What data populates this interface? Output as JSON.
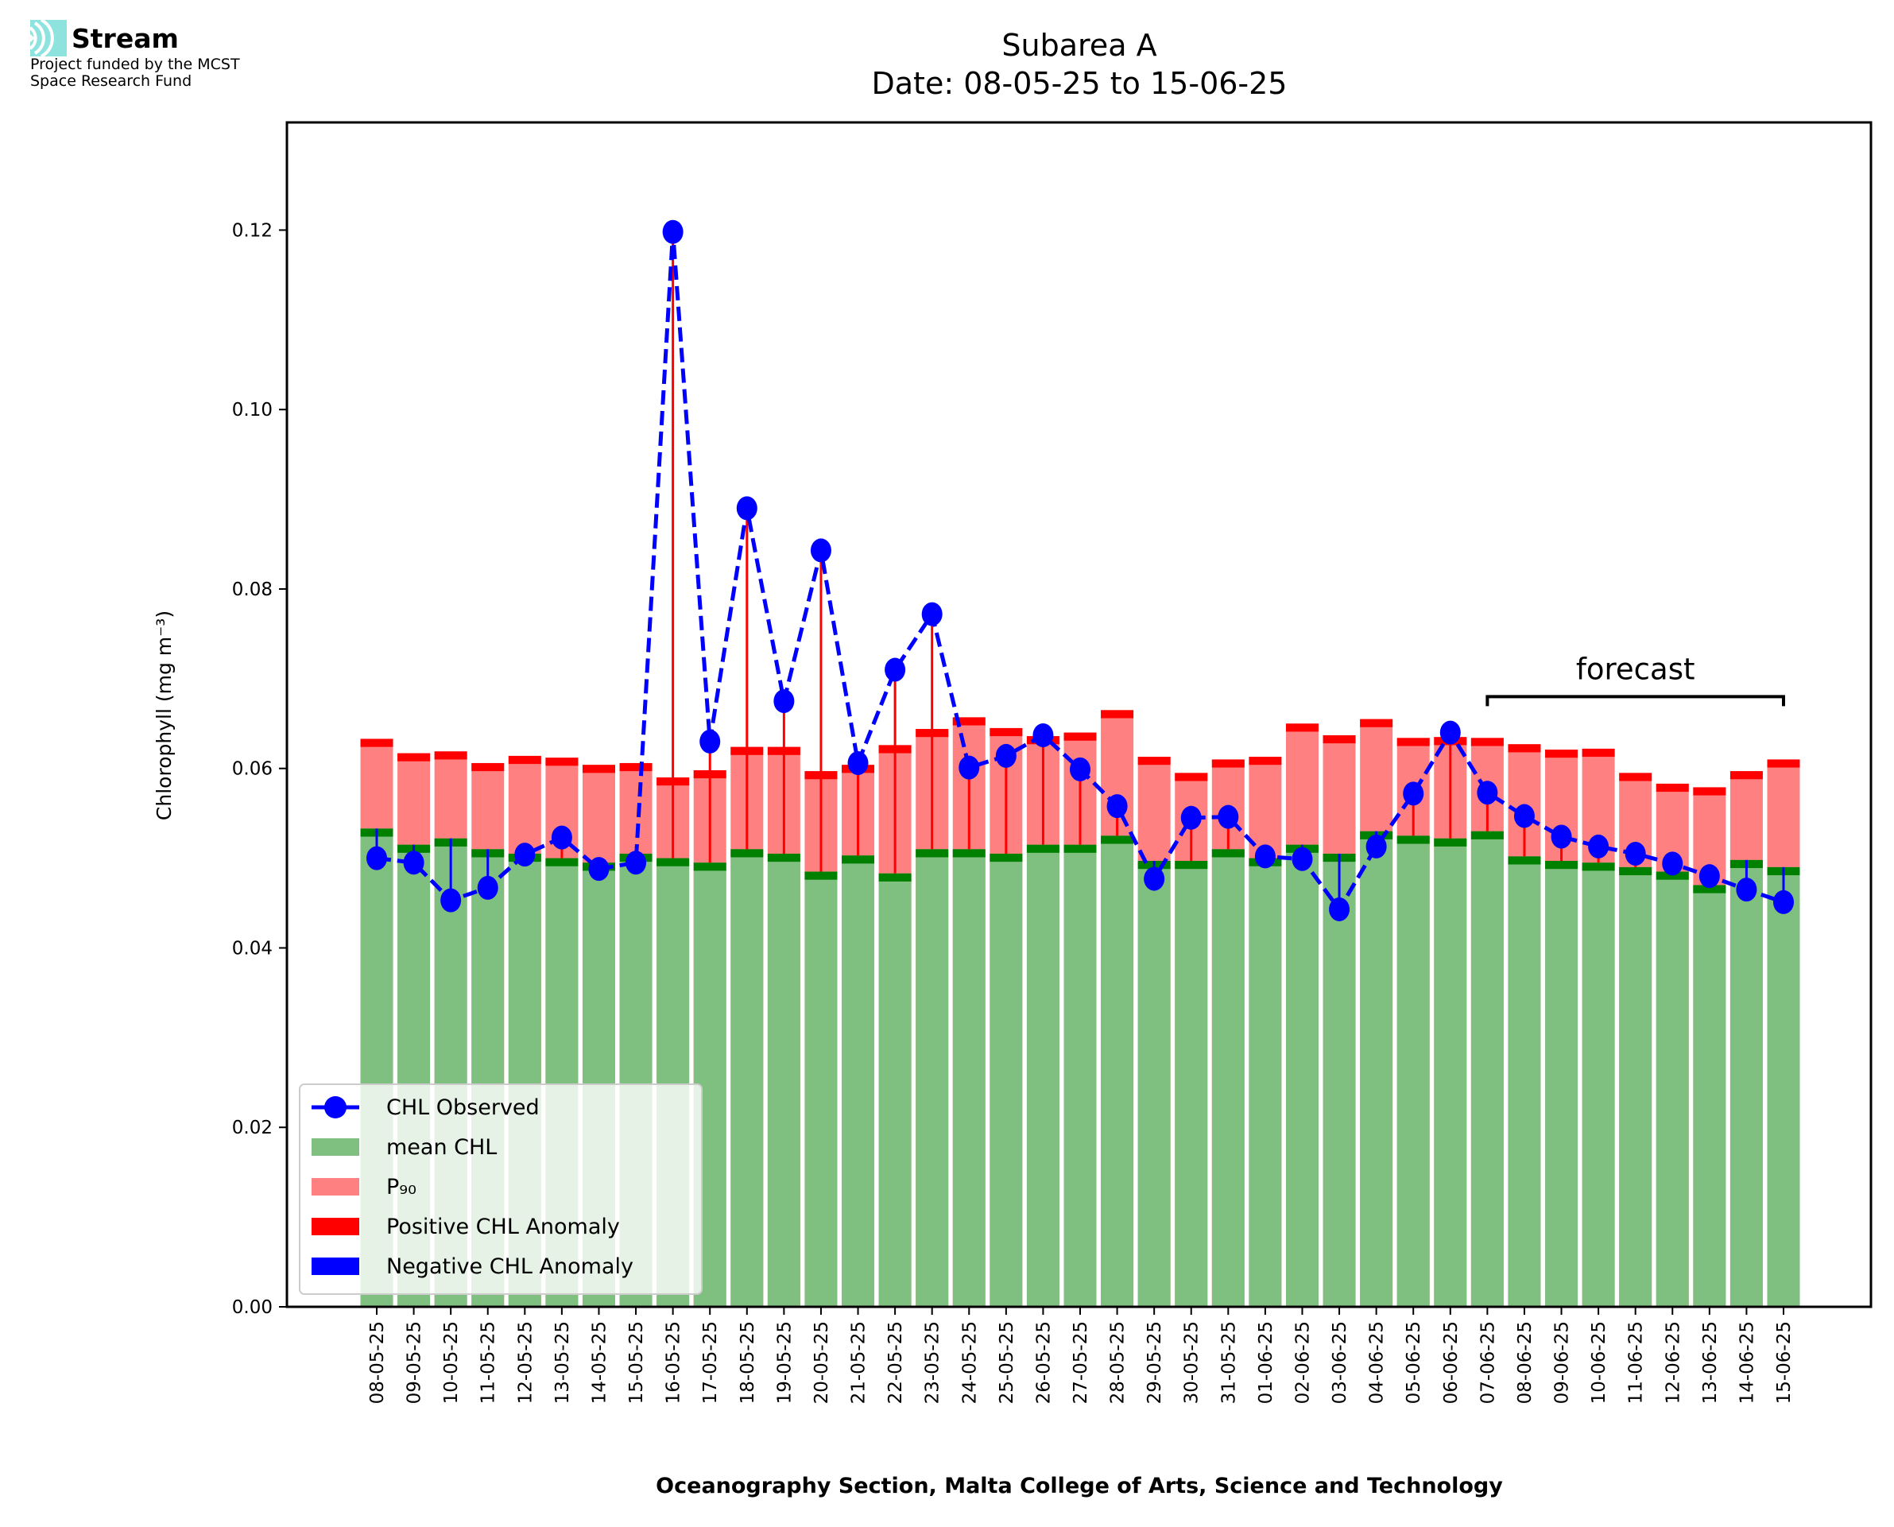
{
  "logo": {
    "name": "Stream",
    "line1": "Project funded by the MCST",
    "line2": "Space Research Fund"
  },
  "chart_data": {
    "type": "bar",
    "title": "Subarea A",
    "subtitle": "Date: 08-05-25 to 15-06-25",
    "xlabel": "Oceanography Section, Malta College of Arts, Science and Technology",
    "ylabel": "Chlorophyll (mg m⁻³)",
    "ylim": [
      0,
      0.132
    ],
    "yticks": [
      "0.00",
      "0.02",
      "0.04",
      "0.06",
      "0.08",
      "0.10",
      "0.12"
    ],
    "categories": [
      "08-05-25",
      "09-05-25",
      "10-05-25",
      "11-05-25",
      "12-05-25",
      "13-05-25",
      "14-05-25",
      "15-05-25",
      "16-05-25",
      "17-05-25",
      "18-05-25",
      "19-05-25",
      "20-05-25",
      "21-05-25",
      "22-05-25",
      "23-05-25",
      "24-05-25",
      "25-05-25",
      "26-05-25",
      "27-05-25",
      "28-05-25",
      "29-05-25",
      "30-05-25",
      "31-05-25",
      "01-06-25",
      "02-06-25",
      "03-06-25",
      "04-06-25",
      "05-06-25",
      "06-06-25",
      "07-06-25",
      "08-06-25",
      "09-06-25",
      "10-06-25",
      "11-06-25",
      "12-06-25",
      "13-06-25",
      "14-06-25",
      "15-06-25"
    ],
    "series": [
      {
        "name": "mean CHL",
        "type": "bar",
        "color": "#7fbf7f",
        "values": [
          0.0533,
          0.0515,
          0.0522,
          0.051,
          0.0505,
          0.05,
          0.0495,
          0.0505,
          0.05,
          0.0495,
          0.051,
          0.0505,
          0.0485,
          0.0503,
          0.0483,
          0.051,
          0.051,
          0.0505,
          0.0515,
          0.0515,
          0.0525,
          0.0497,
          0.0497,
          0.051,
          0.05,
          0.0515,
          0.0505,
          0.053,
          0.0525,
          0.0522,
          0.053,
          0.0502,
          0.0497,
          0.0495,
          0.049,
          0.0485,
          0.047,
          0.0498,
          0.049
        ]
      },
      {
        "name": "P₉₀",
        "type": "bar",
        "color": "#ff8080",
        "values": [
          0.0633,
          0.0617,
          0.0619,
          0.0606,
          0.0614,
          0.0612,
          0.0604,
          0.0606,
          0.059,
          0.0598,
          0.0624,
          0.0624,
          0.0597,
          0.0604,
          0.0626,
          0.0644,
          0.0657,
          0.0645,
          0.0636,
          0.064,
          0.0665,
          0.0613,
          0.0595,
          0.061,
          0.0613,
          0.065,
          0.0637,
          0.0655,
          0.0634,
          0.0635,
          0.0634,
          0.0627,
          0.0621,
          0.0622,
          0.0595,
          0.0583,
          0.0579,
          0.0597,
          0.061
        ]
      },
      {
        "name": "CHL Observed",
        "type": "line",
        "color": "#0000ff",
        "values": [
          0.05,
          0.0495,
          0.0453,
          0.0467,
          0.0504,
          0.0523,
          0.0488,
          0.0495,
          0.1198,
          0.063,
          0.089,
          0.0675,
          0.0843,
          0.0606,
          0.071,
          0.0772,
          0.0601,
          0.0614,
          0.0637,
          0.0599,
          0.0558,
          0.0477,
          0.0545,
          0.0546,
          0.0502,
          0.0499,
          0.0443,
          0.0513,
          0.0572,
          0.064,
          0.0573,
          0.0547,
          0.0524,
          0.0513,
          0.0505,
          0.0494,
          0.048,
          0.0465,
          0.0451
        ]
      }
    ],
    "legend": {
      "placement": "lower-left",
      "entries": [
        "CHL Observed",
        "mean CHL",
        "P₉₀",
        "Positive CHL Anomaly",
        "Negative CHL Anomaly"
      ]
    },
    "anomaly_colors": {
      "positive": "#ff0000",
      "negative": "#0000ff",
      "mean_edge": "#008000"
    },
    "annotation": {
      "text": "forecast",
      "from": "07-06-25",
      "to": "15-06-25",
      "y": 0.068
    }
  }
}
